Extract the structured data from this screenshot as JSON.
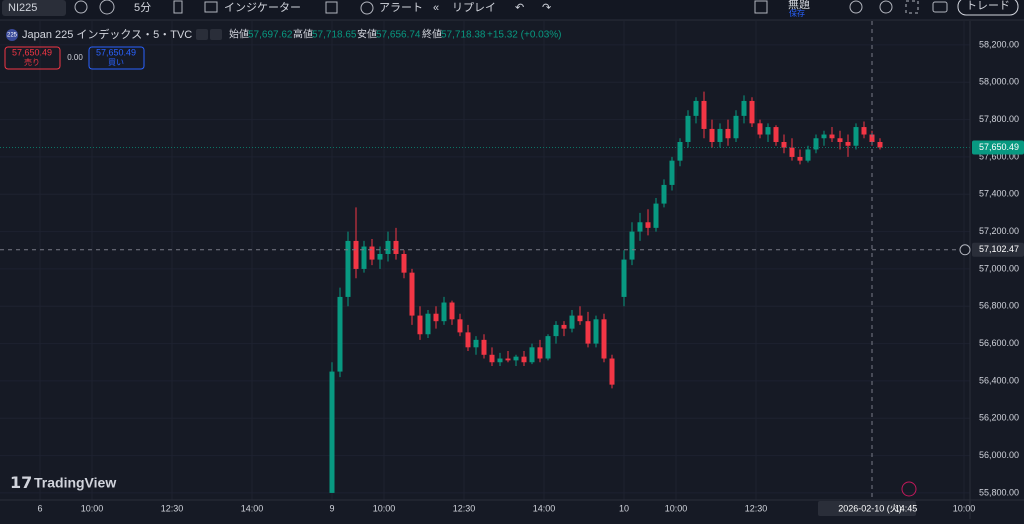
{
  "toolbar": {
    "symbol": "NI225",
    "interval": "5分",
    "indicators": "インジケーター",
    "alert": "アラート",
    "replay": "リプレイ",
    "layout_name": "無題",
    "save": "保存",
    "trade": "トレード"
  },
  "legend": {
    "icon": "225",
    "title": "Japan 225 インデックス・5・TVC",
    "open_label": "始値",
    "open": "57,697.62",
    "high_label": "高値",
    "high": "57,718.65",
    "low_label": "安値",
    "low": "57,656.74",
    "close_label": "終値",
    "close": "57,718.38",
    "change": "+15.32 (+0.03%)",
    "sell_price": "57,650.49",
    "sell": "売り",
    "spread": "0.00",
    "buy_price": "57,650.49",
    "buy": "買い"
  },
  "watermark": "TradingView",
  "chart_data": {
    "type": "candlestick",
    "up_color": "#089981",
    "down_color": "#f23645",
    "xlim": [
      -10,
      232.5
    ],
    "ylim": [
      55762,
      58280
    ],
    "grid": true,
    "xticks": [
      {
        "value": 0,
        "label": "6"
      },
      {
        "value": 13,
        "label": "10:00"
      },
      {
        "value": 33,
        "label": "12:30"
      },
      {
        "value": 53,
        "label": "14:00"
      },
      {
        "value": 73,
        "label": "9"
      },
      {
        "value": 86,
        "label": "10:00"
      },
      {
        "value": 106,
        "label": "12:30"
      },
      {
        "value": 126,
        "label": "14:00"
      },
      {
        "value": 146,
        "label": "10"
      },
      {
        "value": 159,
        "label": "10:00"
      },
      {
        "value": 179,
        "label": "12:30"
      },
      {
        "value": 231,
        "label": "10:00"
      }
    ],
    "yticks": [
      {
        "value": 55800,
        "label": "55,800.00"
      },
      {
        "value": 56000,
        "label": "56,000.00"
      },
      {
        "value": 56200,
        "label": "56,200.00"
      },
      {
        "value": 56400,
        "label": "56,400.00"
      },
      {
        "value": 56600,
        "label": "56,600.00"
      },
      {
        "value": 56800,
        "label": "56,800.00"
      },
      {
        "value": 57000,
        "label": "57,000.00"
      },
      {
        "value": 57200,
        "label": "57,200.00"
      },
      {
        "value": 57400,
        "label": "57,400.00"
      },
      {
        "value": 57600,
        "label": "57,600.00"
      },
      {
        "value": 57800,
        "label": "57,800.00"
      },
      {
        "value": 58000,
        "label": "58,000.00"
      },
      {
        "value": 58200,
        "label": "58,200.00"
      }
    ],
    "x": [
      73,
      75,
      77,
      79,
      81,
      83,
      85,
      87,
      89,
      91,
      93,
      95,
      97,
      99,
      101,
      103,
      105,
      107,
      109,
      111,
      113,
      115,
      117,
      119,
      121,
      123,
      125,
      127,
      129,
      131,
      133,
      135,
      137,
      139,
      141,
      143,
      146,
      148,
      150,
      152,
      154,
      156,
      158,
      160,
      162,
      164,
      166,
      168,
      170,
      172,
      174,
      176,
      178,
      180,
      182,
      184,
      186,
      188,
      190,
      192,
      194,
      196,
      198,
      200,
      202,
      204,
      206,
      208,
      210
    ],
    "open": [
      55800,
      56450,
      56850,
      57150,
      57000,
      57120,
      57050,
      57080,
      57150,
      57080,
      56980,
      56750,
      56650,
      56760,
      56720,
      56820,
      56730,
      56660,
      56580,
      56620,
      56540,
      56500,
      56520,
      56510,
      56530,
      56500,
      56580,
      56520,
      56640,
      56700,
      56680,
      56750,
      56720,
      56600,
      56730,
      56520,
      56850,
      57050,
      57200,
      57250,
      57220,
      57350,
      57450,
      57580,
      57680,
      57820,
      57900,
      57750,
      57680,
      57750,
      57700,
      57820,
      57900,
      57780,
      57720,
      57760,
      57680,
      57650,
      57600,
      57580,
      57640,
      57700,
      57720,
      57700,
      57680,
      57660,
      57760,
      57720,
      57680
    ],
    "high": [
      56500,
      56900,
      57200,
      57330,
      57150,
      57160,
      57120,
      57200,
      57220,
      57100,
      57000,
      56800,
      56780,
      56800,
      56850,
      56830,
      56760,
      56700,
      56640,
      56650,
      56580,
      56550,
      56560,
      56540,
      56560,
      56600,
      56620,
      56650,
      56720,
      56720,
      56780,
      56800,
      56770,
      56750,
      56760,
      56540,
      57100,
      57250,
      57300,
      57320,
      57380,
      57480,
      57600,
      57700,
      57850,
      57920,
      57950,
      57800,
      57780,
      57800,
      57850,
      57930,
      57920,
      57800,
      57780,
      57770,
      57720,
      57700,
      57640,
      57660,
      57720,
      57740,
      57760,
      57740,
      57720,
      57780,
      57790,
      57740,
      57700
    ],
    "low": [
      55800,
      56420,
      56800,
      56950,
      56980,
      57020,
      57000,
      57040,
      57050,
      56950,
      56700,
      56620,
      56630,
      56680,
      56700,
      56700,
      56640,
      56560,
      56540,
      56520,
      56480,
      56480,
      56500,
      56480,
      56480,
      56490,
      56500,
      56510,
      56600,
      56640,
      56660,
      56700,
      56580,
      56580,
      56500,
      56360,
      56800,
      57020,
      57150,
      57180,
      57200,
      57330,
      57420,
      57550,
      57650,
      57780,
      57700,
      57650,
      57650,
      57660,
      57680,
      57780,
      57760,
      57700,
      57680,
      57660,
      57620,
      57580,
      57560,
      57570,
      57620,
      57660,
      57680,
      57640,
      57600,
      57640,
      57700,
      57660,
      57640
    ],
    "close": [
      56450,
      56850,
      57150,
      57000,
      57120,
      57050,
      57080,
      57150,
      57080,
      56980,
      56750,
      56650,
      56760,
      56720,
      56820,
      56730,
      56660,
      56580,
      56620,
      56540,
      56500,
      56520,
      56510,
      56530,
      56500,
      56580,
      56520,
      56640,
      56700,
      56680,
      56750,
      56720,
      56600,
      56730,
      56520,
      56380,
      57050,
      57200,
      57250,
      57220,
      57350,
      57450,
      57580,
      57680,
      57820,
      57900,
      57750,
      57680,
      57750,
      57700,
      57820,
      57900,
      57780,
      57720,
      57760,
      57680,
      57650,
      57600,
      57580,
      57640,
      57700,
      57720,
      57700,
      57680,
      57660,
      57760,
      57720,
      57680,
      57650.49
    ],
    "last_price": {
      "value": 57650.49,
      "label": "57,650.49"
    },
    "crosshair": {
      "y": {
        "value": 57102.47,
        "label": "57,102.47"
      },
      "x": {
        "value": 208,
        "label": "14:45"
      },
      "date": "2026-02-10 (火)"
    }
  }
}
